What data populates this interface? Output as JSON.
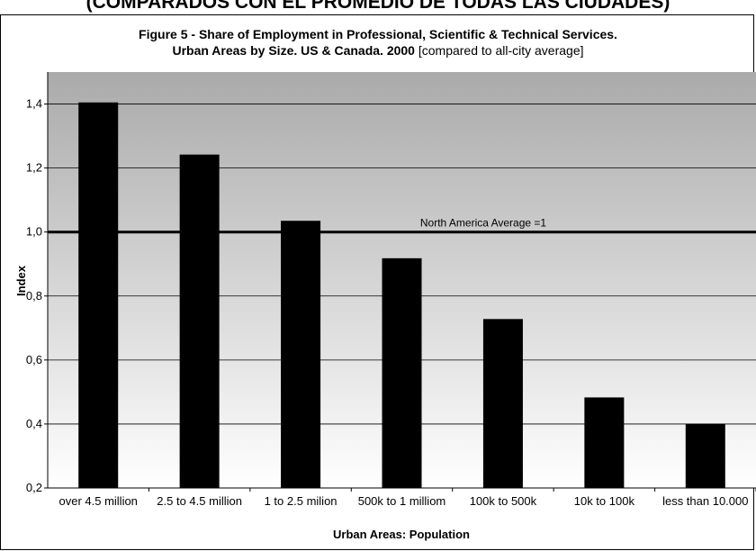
{
  "banner": {
    "text": "(COMPARADOS CON EL PROMEDIO DE TODAS LAS CIUDADES)"
  },
  "chart_data": {
    "type": "bar",
    "title_line1": "Figure 5 - Share of Employment in Professional, Scientific & Technical Services.",
    "title_line2_bold": "Urban Areas by Size. US & Canada. 2000",
    "title_line2_normal": "[compared to all-city average]",
    "xlabel": "Urban Areas: Population",
    "ylabel": "Index",
    "categories": [
      "over 4.5 million",
      "2.5 to 4.5 million",
      "1 to 2.5 milion",
      "500k to 1 milliom",
      "100k to 500k",
      "10k to 100k",
      "less than 10.000"
    ],
    "values": [
      1.405,
      1.242,
      1.035,
      0.918,
      0.728,
      0.483,
      0.4
    ],
    "ylim": [
      0.2,
      1.5
    ],
    "yticks": [
      "0,2",
      "0,4",
      "0,6",
      "0,8",
      "1,0",
      "1,2",
      "1,4"
    ],
    "reference_line": {
      "value": 1.0,
      "label": "North America Average =1"
    },
    "grid": true,
    "legend": "none",
    "colors": {
      "bar": "#000000",
      "plot_top": "#aaaaaa",
      "plot_bottom": "#ffffff"
    }
  }
}
